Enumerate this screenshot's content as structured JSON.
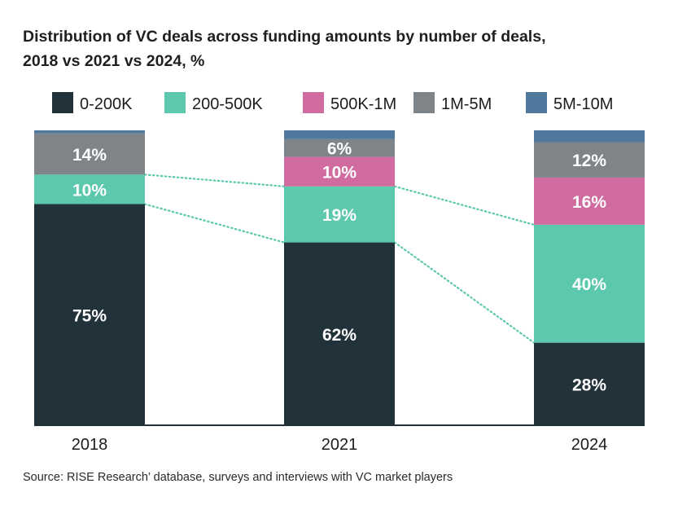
{
  "chart_data": {
    "type": "bar",
    "stacked": true,
    "title_lines": [
      "Distribution of VC deals across funding amounts by number of deals,",
      "2018 vs 2021 vs 2024, %"
    ],
    "categories": [
      "2018",
      "2021",
      "2024"
    ],
    "series": [
      {
        "name": "0-200K",
        "color": "#22323b",
        "values": [
          75,
          62,
          28
        ],
        "labels": [
          "75%",
          "62%",
          "28%"
        ]
      },
      {
        "name": "200-500K",
        "color": "#5cc8ae",
        "values": [
          10,
          19,
          40
        ],
        "labels": [
          "10%",
          "19%",
          "40%"
        ]
      },
      {
        "name": "500K-1M",
        "color": "#cf6b9f",
        "values": [
          0,
          10,
          16
        ],
        "labels": [
          "",
          "10%",
          "16%"
        ]
      },
      {
        "name": "1M-5M",
        "color": "#7f8488",
        "values": [
          14,
          6,
          12
        ],
        "labels": [
          "14%",
          "6%",
          "12%"
        ]
      },
      {
        "name": "5M-10M",
        "color": "#4f7a9d",
        "values": [
          1,
          3,
          4
        ],
        "labels": [
          "",
          "",
          ""
        ]
      }
    ],
    "ylim": [
      0,
      100
    ],
    "connector_color": "#5cc8ae",
    "legend_position": "top"
  },
  "source": "Source: RISE Research’ database, surveys and interviews with VC market players"
}
